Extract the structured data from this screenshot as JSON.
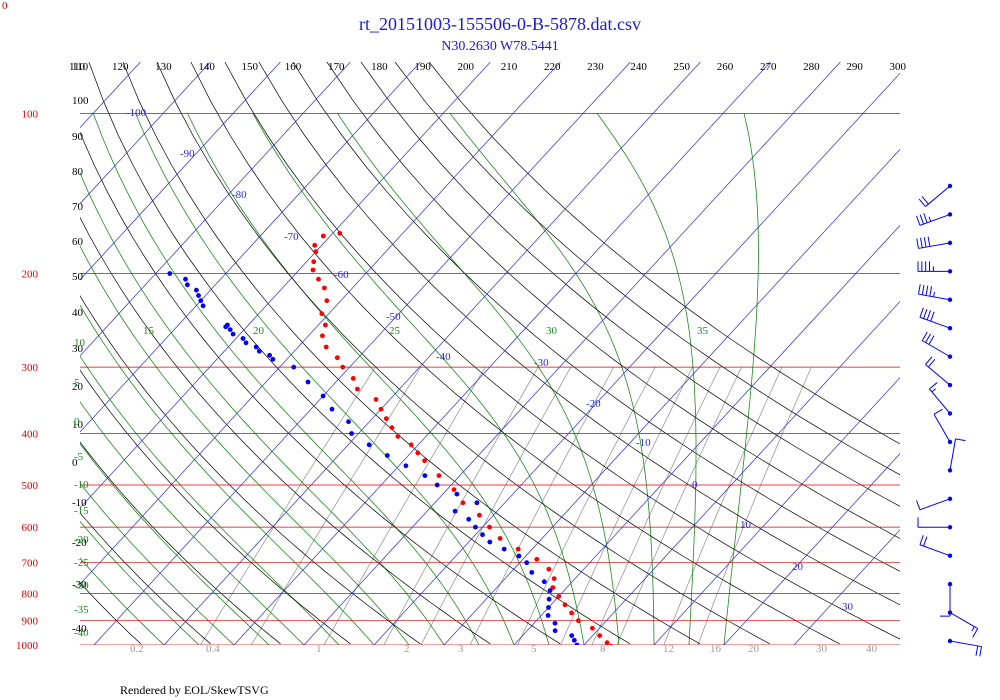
{
  "chart_data": {
    "type": "skew-t",
    "title": "rt_20151003-155506-0-B-5878.dat.csv",
    "subtitle": "N30.2630 W78.5441",
    "footer": "Rendered by EOL/SkewTSVG",
    "corner_label": "0",
    "colors": {
      "title": "#1a1ad6",
      "pressure": "#e00000",
      "isotherm": "#2a2ae0",
      "dry_adiabat": "#000000",
      "moist_adiabat": "#1f8a1f",
      "mixing_ratio": "#9a9a9a",
      "temperature": "#ff0000",
      "dewpoint": "#0000ff"
    },
    "pressure_levels": [
      100,
      200,
      300,
      400,
      500,
      600,
      700,
      800,
      900,
      1000
    ],
    "top_axis_labels": [
      "110",
      "120",
      "130",
      "140",
      "150",
      "160",
      "170",
      "180",
      "190",
      "200",
      "210",
      "220",
      "230",
      "240",
      "250",
      "260",
      "270",
      "280",
      "290",
      "300"
    ],
    "dry_adiabat_ticks": [
      "110",
      "100",
      "90",
      "80",
      "70",
      "60",
      "50",
      "40",
      "30",
      "20",
      "10",
      "0",
      "-10",
      "-20",
      "-30",
      "-40"
    ],
    "isotherm_labels": [
      "-100",
      "-90",
      "-80",
      "-70",
      "-60",
      "-50",
      "-40",
      "-30",
      "-20",
      "-10",
      "0",
      "10",
      "20",
      "30"
    ],
    "moist_labels_top": [
      "15",
      "20",
      "25",
      "30",
      "35"
    ],
    "moist_labels_left": [
      "10",
      "5",
      "0",
      "-5",
      "-10",
      "-15",
      "-20",
      "-25",
      "-30",
      "-35",
      "-40"
    ],
    "mixing_ratio_labels": [
      "0.2",
      "0.4",
      "1",
      "2",
      "3",
      "5",
      "8",
      "12",
      "16",
      "20",
      "30",
      "40"
    ],
    "temperature_series": {
      "name": "Temperature",
      "pressure": [
        168,
        170,
        177,
        182,
        190,
        197,
        205,
        213,
        225,
        238,
        250,
        262,
        275,
        288,
        300,
        315,
        330,
        345,
        360,
        375,
        390,
        405,
        420,
        435,
        450,
        480,
        510,
        540,
        570,
        600,
        630,
        660,
        690,
        720,
        750,
        780,
        810,
        840,
        870,
        900,
        930,
        960,
        990,
        1005
      ],
      "temperature": [
        -69,
        -71,
        -71,
        -70,
        -69,
        -68,
        -66,
        -64,
        -62,
        -61,
        -59,
        -58,
        -56,
        -53,
        -51,
        -48,
        -46,
        -42,
        -40,
        -38,
        -36,
        -34,
        -31,
        -29,
        -27,
        -23,
        -19,
        -16,
        -12,
        -9,
        -6,
        -2,
        2,
        5,
        7,
        8,
        10,
        12,
        14,
        16,
        19,
        21,
        23,
        24
      ]
    },
    "dewpoint_series": {
      "name": "Dewpoint",
      "pressure": [
        200,
        205,
        210,
        215,
        220,
        225,
        230,
        250,
        252,
        255,
        260,
        265,
        270,
        275,
        280,
        285,
        290,
        300,
        320,
        340,
        360,
        380,
        400,
        420,
        440,
        460,
        480,
        500,
        520,
        540,
        560,
        580,
        600,
        620,
        640,
        660,
        680,
        700,
        730,
        760,
        790,
        820,
        850,
        880,
        910,
        940,
        960,
        980,
        1000
      ],
      "dewpoint": [
        -88,
        -85,
        -84,
        -82,
        -81,
        -80,
        -79,
        -73,
        -73,
        -72,
        -71,
        -69,
        -68,
        -66,
        -65,
        -63,
        -62,
        -58,
        -54,
        -50,
        -47,
        -43,
        -41,
        -37,
        -33,
        -29,
        -25,
        -22,
        -18,
        -14,
        -16,
        -13,
        -11,
        -9,
        -7,
        -4,
        -1,
        1,
        3,
        6,
        8,
        9,
        10,
        11,
        13,
        14,
        17,
        18,
        19
      ]
    },
    "wind_barbs": [
      {
        "pressure": 100,
        "speed": 20,
        "direction": 230
      },
      {
        "pressure": 150,
        "speed": 35,
        "direction": 250
      },
      {
        "pressure": 200,
        "speed": 40,
        "direction": 260
      },
      {
        "pressure": 250,
        "speed": 45,
        "direction": 270
      },
      {
        "pressure": 300,
        "speed": 45,
        "direction": 280
      },
      {
        "pressure": 350,
        "speed": 40,
        "direction": 290
      },
      {
        "pressure": 400,
        "speed": 30,
        "direction": 300
      },
      {
        "pressure": 450,
        "speed": 20,
        "direction": 310
      },
      {
        "pressure": 500,
        "speed": 15,
        "direction": 320
      },
      {
        "pressure": 550,
        "speed": 10,
        "direction": 330
      },
      {
        "pressure": 600,
        "speed": 10,
        "direction": 10
      },
      {
        "pressure": 700,
        "speed": 10,
        "direction": 250
      },
      {
        "pressure": 800,
        "speed": 10,
        "direction": 270
      },
      {
        "pressure": 850,
        "speed": 20,
        "direction": 290
      },
      {
        "pressure": 900,
        "speed": 10,
        "direction": 180
      },
      {
        "pressure": 950,
        "speed": 15,
        "direction": 120
      },
      {
        "pressure": 1000,
        "speed": 20,
        "direction": 100
      }
    ]
  }
}
